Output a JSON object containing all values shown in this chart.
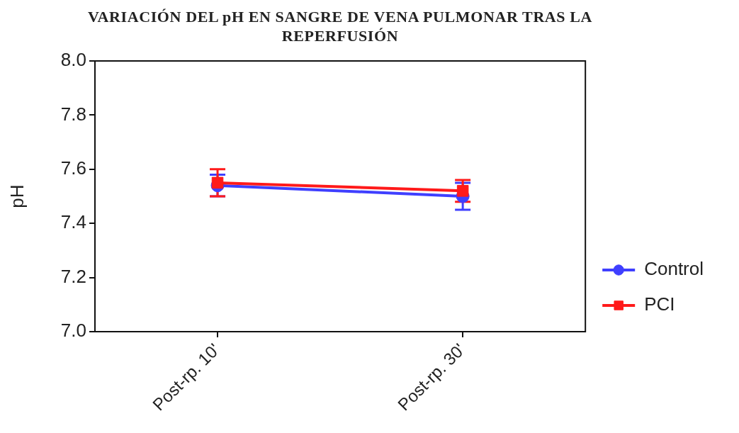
{
  "chart_data": {
    "type": "line",
    "title": "VARIACIÓN DEL pH EN SANGRE DE VENA PULMONAR TRAS LA REPERFUSIÓN",
    "ylabel": "pH",
    "categories": [
      "Post-rp. 10'",
      "Post-rp. 30'"
    ],
    "series": [
      {
        "name": "Control",
        "color": "#3f3fff",
        "values": [
          7.54,
          7.5
        ],
        "errors": [
          0.04,
          0.05
        ],
        "marker": "circle"
      },
      {
        "name": "PCI",
        "color": "#ff1a1a",
        "values": [
          7.55,
          7.52
        ],
        "errors": [
          0.05,
          0.04
        ],
        "marker": "square"
      }
    ],
    "ylim": [
      7.0,
      8.0
    ],
    "yticks": [
      {
        "value": 7,
        "label": "7.0"
      },
      {
        "value": 7.2,
        "label": "7.2"
      },
      {
        "value": 7.4,
        "label": "7.4"
      },
      {
        "value": 7.6,
        "label": "7.6"
      },
      {
        "value": 7.8,
        "label": "7.8"
      },
      {
        "value": 8,
        "label": "8.0"
      }
    ],
    "grid": false,
    "legend": "right",
    "line_style": "solid"
  }
}
